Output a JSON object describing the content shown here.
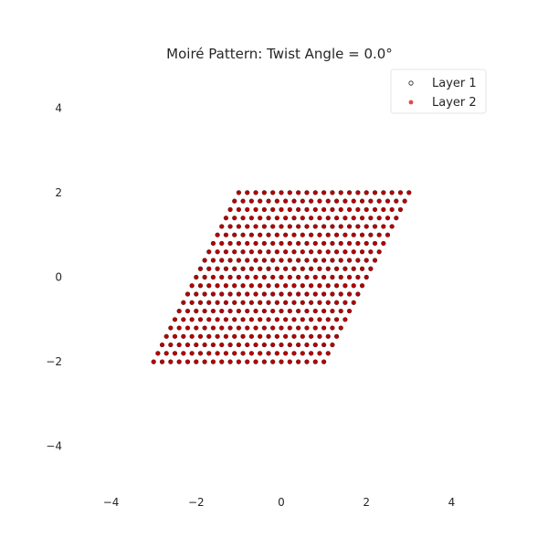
{
  "chart_data": {
    "type": "scatter",
    "title": "Moiré Pattern: Twist Angle = 0.0°",
    "xlabel": "",
    "ylabel": "",
    "xlim": [
      -5,
      5
    ],
    "ylim": [
      -5,
      5
    ],
    "x_ticks": [
      -4,
      -2,
      0,
      2,
      4
    ],
    "y_ticks": [
      -4,
      -2,
      0,
      2,
      4
    ],
    "x_tick_labels": [
      "−4",
      "−2",
      "0",
      "2",
      "4"
    ],
    "y_tick_labels": [
      "−4",
      "−2",
      "0",
      "2",
      "4"
    ],
    "grid": false,
    "legend": {
      "placement": "top-right",
      "entries": [
        "Layer 1",
        "Layer 2"
      ]
    },
    "lattice": {
      "n_range": [
        -10,
        10
      ],
      "m_range": [
        -10,
        10
      ],
      "a1": [
        0.2,
        0
      ],
      "a2": [
        0.1,
        0.2
      ]
    },
    "series": [
      {
        "name": "Layer 1",
        "twist_angle_deg": 0.0,
        "marker": "hollow",
        "color": "#1f1f1f"
      },
      {
        "name": "Layer 2",
        "twist_angle_deg": 0.0,
        "marker": "filled",
        "color": "#b30000"
      }
    ]
  }
}
